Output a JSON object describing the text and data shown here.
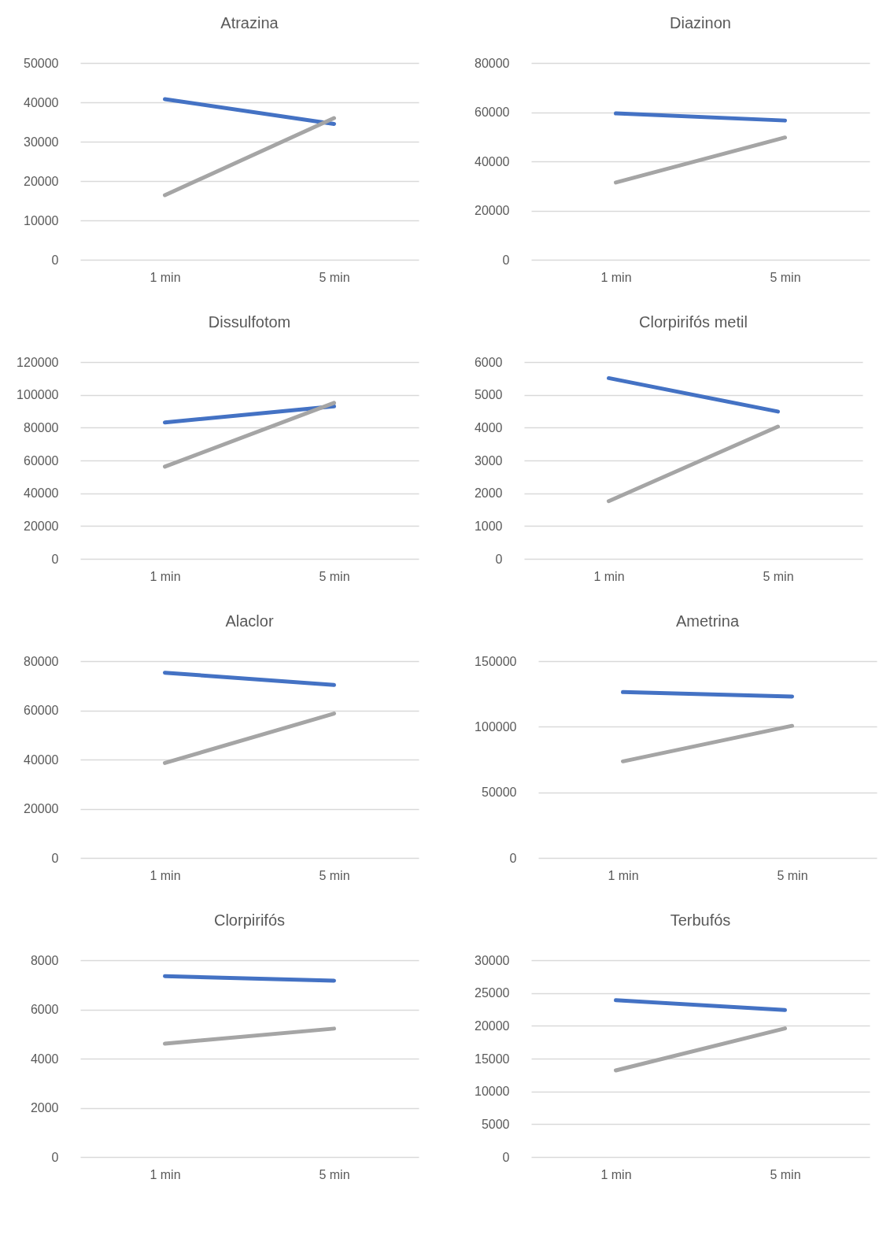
{
  "chart_data": [
    {
      "type": "line",
      "title": "Atrazina",
      "categories": [
        "1 min",
        "5 min"
      ],
      "series": [
        {
          "color": "#4472c4",
          "values": [
            40800,
            34500
          ]
        },
        {
          "color": "#a5a5a5",
          "values": [
            16400,
            36000
          ]
        }
      ],
      "ylim": [
        0,
        50000
      ],
      "yticks": [
        0,
        10000,
        20000,
        30000,
        40000,
        50000
      ],
      "grid": "y"
    },
    {
      "type": "line",
      "title": "Diazinon",
      "categories": [
        "1 min",
        "5 min"
      ],
      "series": [
        {
          "color": "#4472c4",
          "values": [
            59500,
            56600
          ]
        },
        {
          "color": "#a5a5a5",
          "values": [
            31400,
            49700
          ]
        }
      ],
      "ylim": [
        0,
        80000
      ],
      "yticks": [
        0,
        20000,
        40000,
        60000,
        80000
      ],
      "grid": "y"
    },
    {
      "type": "line",
      "title": "Dissulfotom",
      "categories": [
        "1 min",
        "5 min"
      ],
      "series": [
        {
          "color": "#4472c4",
          "values": [
            83200,
            93000
          ]
        },
        {
          "color": "#a5a5a5",
          "values": [
            56200,
            95100
          ]
        }
      ],
      "ylim": [
        0,
        120000
      ],
      "yticks": [
        0,
        20000,
        40000,
        60000,
        80000,
        100000,
        120000
      ],
      "grid": "y"
    },
    {
      "type": "line",
      "title": "Clorpirifós metil",
      "categories": [
        "1 min",
        "5 min"
      ],
      "series": [
        {
          "color": "#4472c4",
          "values": [
            5510,
            4490
          ]
        },
        {
          "color": "#a5a5a5",
          "values": [
            1760,
            4030
          ]
        }
      ],
      "ylim": [
        0,
        6000
      ],
      "yticks": [
        0,
        1000,
        2000,
        3000,
        4000,
        5000,
        6000
      ],
      "grid": "y"
    },
    {
      "type": "line",
      "title": "Alaclor",
      "categories": [
        "1 min",
        "5 min"
      ],
      "series": [
        {
          "color": "#4472c4",
          "values": [
            75300,
            70300
          ]
        },
        {
          "color": "#a5a5a5",
          "values": [
            38600,
            58700
          ]
        }
      ],
      "ylim": [
        0,
        80000
      ],
      "yticks": [
        0,
        20000,
        40000,
        60000,
        80000
      ],
      "grid": "y"
    },
    {
      "type": "line",
      "title": "Ametrina",
      "categories": [
        "1 min",
        "5 min"
      ],
      "series": [
        {
          "color": "#4472c4",
          "values": [
            126400,
            123000
          ]
        },
        {
          "color": "#a5a5a5",
          "values": [
            73600,
            100700
          ]
        }
      ],
      "ylim": [
        0,
        150000
      ],
      "yticks": [
        0,
        50000,
        100000,
        150000
      ],
      "grid": "y"
    },
    {
      "type": "line",
      "title": "Clorpirifós",
      "categories": [
        "1 min",
        "5 min"
      ],
      "series": [
        {
          "color": "#4472c4",
          "values": [
            7350,
            7170
          ]
        },
        {
          "color": "#a5a5a5",
          "values": [
            4610,
            5220
          ]
        }
      ],
      "ylim": [
        0,
        8000
      ],
      "yticks": [
        0,
        2000,
        4000,
        6000,
        8000
      ],
      "grid": "y"
    },
    {
      "type": "line",
      "title": "Terbufós",
      "categories": [
        "1 min",
        "5 min"
      ],
      "series": [
        {
          "color": "#4472c4",
          "values": [
            23900,
            22400
          ]
        },
        {
          "color": "#a5a5a5",
          "values": [
            13200,
            19600
          ]
        }
      ],
      "ylim": [
        0,
        30000
      ],
      "yticks": [
        0,
        5000,
        10000,
        15000,
        20000,
        25000,
        30000
      ],
      "grid": "y"
    }
  ]
}
